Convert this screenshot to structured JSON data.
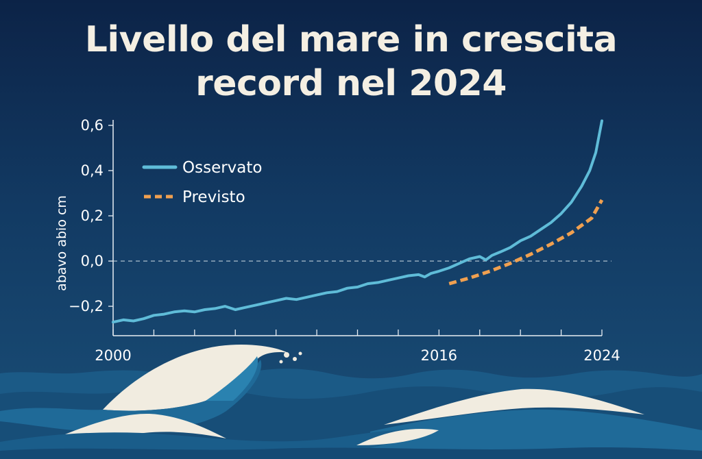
{
  "header": {
    "title_line1": "Livello del mare in crescita",
    "title_line2": "record nel 2024"
  },
  "chart_data": {
    "type": "line",
    "title": "Livello del mare in crescita record nel 2024",
    "ylabel": "abavo abio cm",
    "xlabel": "",
    "xlim": [
      2000,
      2024
    ],
    "ylim": [
      -0.33,
      0.6
    ],
    "x_ticks": [
      "2000",
      "2016",
      "2024"
    ],
    "y_ticks": [
      {
        "value": 0.6,
        "label": "0,6"
      },
      {
        "value": 0.4,
        "label": "0,4"
      },
      {
        "value": 0.2,
        "label": "0,2"
      },
      {
        "value": 0.0,
        "label": "0,0"
      },
      {
        "value": -0.2,
        "label": "−0,2"
      }
    ],
    "reference_line": 0.0,
    "legend_position": "top-left",
    "series": [
      {
        "name": "Osservato",
        "style": "solid",
        "color": "#5fbcd8",
        "points": [
          [
            2000,
            -0.27
          ],
          [
            2000.5,
            -0.26
          ],
          [
            2001,
            -0.265
          ],
          [
            2001.5,
            -0.255
          ],
          [
            2002,
            -0.24
          ],
          [
            2002.5,
            -0.235
          ],
          [
            2003,
            -0.225
          ],
          [
            2003.5,
            -0.22
          ],
          [
            2004,
            -0.225
          ],
          [
            2004.5,
            -0.215
          ],
          [
            2005,
            -0.21
          ],
          [
            2005.5,
            -0.2
          ],
          [
            2006,
            -0.215
          ],
          [
            2006.5,
            -0.205
          ],
          [
            2007,
            -0.195
          ],
          [
            2007.5,
            -0.185
          ],
          [
            2008,
            -0.175
          ],
          [
            2008.5,
            -0.165
          ],
          [
            2009,
            -0.17
          ],
          [
            2009.5,
            -0.16
          ],
          [
            2010,
            -0.15
          ],
          [
            2010.5,
            -0.14
          ],
          [
            2011,
            -0.135
          ],
          [
            2011.5,
            -0.12
          ],
          [
            2012,
            -0.115
          ],
          [
            2012.5,
            -0.1
          ],
          [
            2013,
            -0.095
          ],
          [
            2013.5,
            -0.085
          ],
          [
            2014,
            -0.075
          ],
          [
            2014.5,
            -0.065
          ],
          [
            2015,
            -0.06
          ],
          [
            2015.3,
            -0.07
          ],
          [
            2015.6,
            -0.055
          ],
          [
            2016,
            -0.045
          ],
          [
            2016.5,
            -0.03
          ],
          [
            2017,
            -0.01
          ],
          [
            2017.5,
            0.01
          ],
          [
            2018,
            0.02
          ],
          [
            2018.3,
            0.005
          ],
          [
            2018.6,
            0.025
          ],
          [
            2019,
            0.04
          ],
          [
            2019.5,
            0.06
          ],
          [
            2020,
            0.09
          ],
          [
            2020.5,
            0.11
          ],
          [
            2021,
            0.14
          ],
          [
            2021.5,
            0.17
          ],
          [
            2022,
            0.21
          ],
          [
            2022.5,
            0.26
          ],
          [
            2023,
            0.33
          ],
          [
            2023.4,
            0.4
          ],
          [
            2023.7,
            0.48
          ],
          [
            2024,
            0.62
          ]
        ]
      },
      {
        "name": "Previsto",
        "style": "dashed",
        "color": "#f0a050",
        "points": [
          [
            2016.5,
            -0.1
          ],
          [
            2017.5,
            -0.075
          ],
          [
            2018.5,
            -0.045
          ],
          [
            2019.5,
            -0.01
          ],
          [
            2020.5,
            0.03
          ],
          [
            2021.5,
            0.075
          ],
          [
            2022.5,
            0.125
          ],
          [
            2023.5,
            0.19
          ],
          [
            2024,
            0.27
          ]
        ]
      }
    ]
  },
  "colors": {
    "background_top": "#0c2347",
    "background_bottom": "#1a4f78",
    "axis": "#e8eef4",
    "observed": "#5fbcd8",
    "projected": "#f0a050",
    "title": "#f4efe3"
  }
}
